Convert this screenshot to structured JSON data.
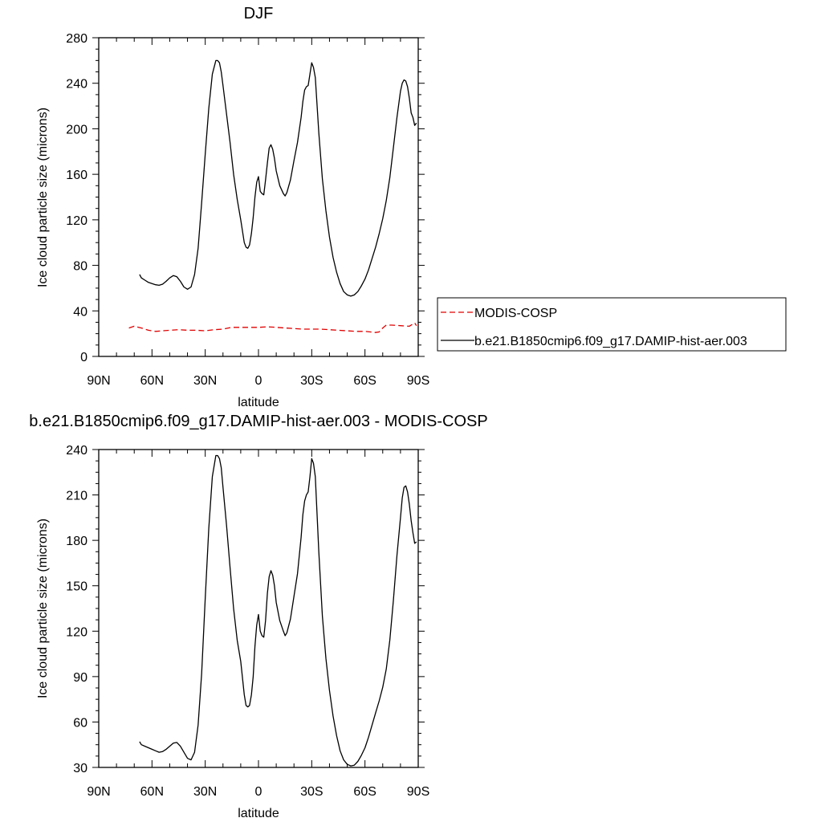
{
  "chart_data": [
    {
      "type": "line",
      "title": "DJF",
      "xlabel": "latitude",
      "ylabel": "Ice cloud particle size (microns)",
      "xlim": [
        -90,
        90
      ],
      "ylim": [
        0,
        280
      ],
      "xticks": [
        -90,
        -60,
        -30,
        0,
        30,
        60,
        90
      ],
      "xtick_labels": [
        "90N",
        "60N",
        "30N",
        "0",
        "30S",
        "60S",
        "90S"
      ],
      "yticks": [
        0,
        40,
        80,
        120,
        160,
        200,
        240,
        280
      ],
      "ytick_labels": [
        "0",
        "40",
        "80",
        "120",
        "160",
        "200",
        "240",
        "280"
      ],
      "legend": {
        "placement": "right"
      },
      "series": [
        {
          "name": "MODIS-COSP",
          "color": "#e00000",
          "dash": "dashed",
          "x": [
            -73,
            -70,
            -66,
            -62,
            -58,
            -54,
            -50,
            -45,
            -40,
            -35,
            -30,
            -25,
            -20,
            -15,
            -10,
            -5,
            0,
            5,
            10,
            15,
            20,
            25,
            30,
            35,
            40,
            45,
            50,
            55,
            60,
            63,
            66,
            68,
            70,
            72,
            75,
            80,
            85,
            88,
            89
          ],
          "y": [
            25,
            26.5,
            25,
            23,
            22,
            22.5,
            23,
            23.5,
            23,
            23,
            22.5,
            23.5,
            24,
            25.5,
            25.5,
            25.5,
            25.5,
            26,
            25.5,
            25,
            24.5,
            24,
            24,
            24,
            23.5,
            23,
            22.5,
            22,
            22,
            21.5,
            21,
            21.5,
            25,
            27.5,
            27.5,
            27,
            26.5,
            29.5,
            27
          ]
        },
        {
          "name": "b.e21.B1850cmip6.f09_g17.DAMIP-hist-aer.003",
          "color": "#000000",
          "dash": "solid",
          "x": [
            -67,
            -66,
            -64,
            -62,
            -60,
            -58,
            -56,
            -54,
            -52,
            -50,
            -48,
            -46,
            -44,
            -42,
            -40,
            -38,
            -36,
            -34,
            -32,
            -30,
            -28,
            -26,
            -24,
            -23,
            -22,
            -21,
            -20,
            -18,
            -16,
            -14,
            -12,
            -10,
            -8,
            -7,
            -6,
            -5,
            -4,
            -3,
            -2,
            -1,
            0,
            1,
            2,
            3,
            4,
            5,
            6,
            7,
            8,
            9,
            10,
            12,
            14,
            15,
            16,
            18,
            20,
            22,
            24,
            25,
            26,
            27,
            28,
            29,
            30,
            31,
            32,
            34,
            36,
            38,
            40,
            42,
            44,
            46,
            48,
            50,
            52,
            54,
            56,
            58,
            60,
            62,
            64,
            66,
            68,
            70,
            72,
            74,
            76,
            78,
            80,
            81,
            82,
            83,
            84,
            85,
            86,
            87,
            88,
            89
          ],
          "y": [
            72,
            69,
            67,
            65,
            64,
            63,
            62.5,
            63.5,
            66,
            69,
            71,
            70,
            66,
            61,
            59,
            61,
            72,
            95,
            135,
            178,
            218,
            248,
            260,
            260,
            258,
            250,
            238,
            213,
            188,
            160,
            138,
            120,
            100,
            96,
            95,
            98,
            108,
            122,
            140,
            153,
            158,
            145,
            143,
            142,
            155,
            170,
            183,
            186,
            182,
            174,
            163,
            150,
            143,
            141,
            144,
            155,
            172,
            188,
            210,
            224,
            234,
            237,
            238,
            248,
            258,
            254,
            245,
            196,
            156,
            128,
            105,
            87,
            74,
            64,
            57,
            54,
            53,
            54,
            57,
            62,
            68,
            76,
            86,
            96,
            108,
            121,
            137,
            157,
            183,
            210,
            233,
            240,
            243,
            242,
            237,
            227,
            214,
            210,
            203,
            205
          ]
        }
      ]
    },
    {
      "type": "line",
      "title": "b.e21.B1850cmip6.f09_g17.DAMIP-hist-aer.003 - MODIS-COSP",
      "xlabel": "latitude",
      "ylabel": "Ice cloud particle size (microns)",
      "xlim": [
        -90,
        90
      ],
      "ylim": [
        30,
        240
      ],
      "xticks": [
        -90,
        -60,
        -30,
        0,
        30,
        60,
        90
      ],
      "xtick_labels": [
        "90N",
        "60N",
        "30N",
        "0",
        "30S",
        "60S",
        "90S"
      ],
      "yticks": [
        30,
        60,
        90,
        120,
        150,
        180,
        210,
        240
      ],
      "ytick_labels": [
        "30",
        "60",
        "90",
        "120",
        "150",
        "180",
        "210",
        "240"
      ],
      "series": [
        {
          "color": "#000000",
          "dash": "solid",
          "x": [
            -67,
            -66,
            -64,
            -62,
            -60,
            -58,
            -56,
            -54,
            -52,
            -50,
            -48,
            -46,
            -44,
            -42,
            -40,
            -38,
            -36,
            -34,
            -32,
            -30,
            -28,
            -26,
            -24,
            -23,
            -22,
            -21,
            -20,
            -18,
            -16,
            -14,
            -12,
            -10,
            -8,
            -7,
            -6,
            -5,
            -4,
            -3,
            -2,
            -1,
            0,
            1,
            2,
            3,
            4,
            5,
            6,
            7,
            8,
            9,
            10,
            12,
            14,
            15,
            16,
            18,
            20,
            22,
            24,
            25,
            26,
            27,
            28,
            29,
            30,
            31,
            32,
            34,
            36,
            38,
            40,
            42,
            44,
            46,
            48,
            50,
            52,
            54,
            56,
            58,
            60,
            62,
            64,
            66,
            68,
            70,
            72,
            74,
            76,
            78,
            80,
            81,
            82,
            83,
            84,
            85,
            86,
            87,
            88,
            89
          ],
          "y": [
            47,
            45,
            44,
            43,
            42,
            41,
            40,
            40.5,
            42,
            44,
            46,
            46.5,
            44,
            40,
            36,
            35,
            40,
            58,
            92,
            142,
            188,
            222,
            236,
            236,
            234,
            228,
            215,
            190,
            162,
            135,
            114,
            100,
            78,
            71,
            70,
            71,
            78,
            90,
            110,
            124,
            131,
            120,
            117,
            116,
            127,
            145,
            156,
            160,
            157,
            150,
            139,
            127,
            120,
            117,
            119,
            128,
            143,
            158,
            182,
            197,
            206,
            210,
            212,
            222,
            234,
            231,
            222,
            172,
            130,
            102,
            81,
            64,
            51,
            41,
            35,
            32,
            31,
            31.5,
            34,
            38,
            43,
            50,
            58,
            66,
            74,
            83,
            95,
            114,
            140,
            170,
            195,
            208,
            215,
            216,
            212,
            204,
            193,
            185,
            178,
            179
          ]
        }
      ]
    }
  ]
}
